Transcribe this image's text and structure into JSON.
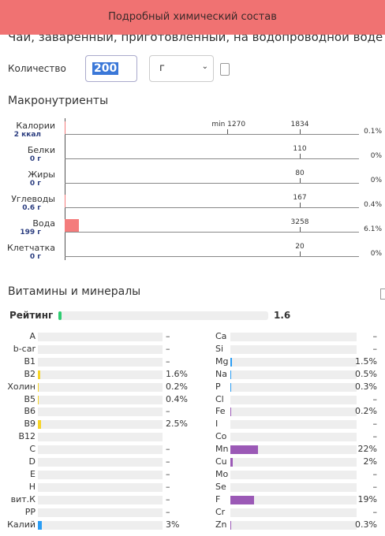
{
  "header": {
    "banner": "Подробный химический состав",
    "title": "Чай, заваренный, приготовленный, на водопроводной воде"
  },
  "quantity": {
    "label": "Количество",
    "amount": 200,
    "unit": "г"
  },
  "macros": {
    "title": "Макронутриенты",
    "rows": [
      {
        "name": "Калории",
        "amount": "2 ккал",
        "norm": 1834,
        "min": {
          "value": 1270,
          "label": "min 1270"
        },
        "percent": 0.1,
        "percent_label": "0.1%",
        "color": "#f47c7c"
      },
      {
        "name": "Белки",
        "amount": "0 г",
        "norm": 110,
        "percent": 0,
        "percent_label": "0%",
        "color": "#f47c7c"
      },
      {
        "name": "Жиры",
        "amount": "0 г",
        "norm": 80,
        "percent": 0,
        "percent_label": "0%",
        "color": "#f47c7c"
      },
      {
        "name": "Углеводы",
        "amount": "0.6 г",
        "norm": 167,
        "percent": 0.4,
        "percent_label": "0.4%",
        "color": "#f47c7c"
      },
      {
        "name": "Вода",
        "amount": "199 г",
        "norm": 3258,
        "percent": 6.1,
        "percent_label": "6.1%",
        "color": "#f47c7c"
      },
      {
        "name": "Клетчатка",
        "amount": "0 г",
        "norm": 20,
        "percent": 0,
        "percent_label": "0%",
        "color": "#f47c7c"
      }
    ]
  },
  "vitamins": {
    "title": "Витамины и минералы",
    "rating": {
      "label": "Рейтинг",
      "value": 1.6,
      "color": "#2ecc71"
    },
    "left": [
      {
        "name": "A",
        "value": null,
        "label": "–"
      },
      {
        "name": "b-car",
        "value": null,
        "label": "–"
      },
      {
        "name": "B1",
        "value": null,
        "label": "–"
      },
      {
        "name": "B2",
        "value": 1.6,
        "label": "1.6%",
        "color": "#f5d328"
      },
      {
        "name": "Холин",
        "value": 0.2,
        "label": "0.2%",
        "color": "#f5d328"
      },
      {
        "name": "B5",
        "value": 0.4,
        "label": "0.4%",
        "color": "#f5d328"
      },
      {
        "name": "B6",
        "value": null,
        "label": "–"
      },
      {
        "name": "B9",
        "value": 2.5,
        "label": "2.5%",
        "color": "#f5d328"
      },
      {
        "name": "B12",
        "value": null,
        "label": null
      },
      {
        "name": "C",
        "value": null,
        "label": "–"
      },
      {
        "name": "D",
        "value": null,
        "label": "–"
      },
      {
        "name": "E",
        "value": null,
        "label": "–"
      },
      {
        "name": "H",
        "value": null,
        "label": "–"
      },
      {
        "name": "вит.К",
        "value": null,
        "label": "–"
      },
      {
        "name": "PP",
        "value": null,
        "label": "–"
      },
      {
        "name": "Калий",
        "value": 3,
        "label": "3%",
        "color": "#2a9df4"
      }
    ],
    "right": [
      {
        "name": "Ca",
        "value": null,
        "label": "–"
      },
      {
        "name": "Si",
        "value": null,
        "label": "–"
      },
      {
        "name": "Mg",
        "value": 1.5,
        "label": "1.5%",
        "color": "#2a9df4"
      },
      {
        "name": "Na",
        "value": 0.5,
        "label": "0.5%",
        "color": "#2a9df4"
      },
      {
        "name": "P",
        "value": 0.3,
        "label": "0.3%",
        "color": "#2a9df4"
      },
      {
        "name": "Cl",
        "value": null,
        "label": "–"
      },
      {
        "name": "Fe",
        "value": 0.2,
        "label": "0.2%",
        "color": "#9b59b6"
      },
      {
        "name": "I",
        "value": null,
        "label": "–"
      },
      {
        "name": "Co",
        "value": null,
        "label": "–"
      },
      {
        "name": "Mn",
        "value": 22,
        "label": "22%",
        "color": "#9b59b6"
      },
      {
        "name": "Cu",
        "value": 2,
        "label": "2%",
        "color": "#9b59b6"
      },
      {
        "name": "Mo",
        "value": null,
        "label": "–"
      },
      {
        "name": "Se",
        "value": null,
        "label": "–"
      },
      {
        "name": "F",
        "value": 19,
        "label": "19%",
        "color": "#9b59b6"
      },
      {
        "name": "Cr",
        "value": null,
        "label": "–"
      },
      {
        "name": "Zn",
        "value": 0.3,
        "label": "0.3%",
        "color": "#9b59b6"
      }
    ]
  }
}
